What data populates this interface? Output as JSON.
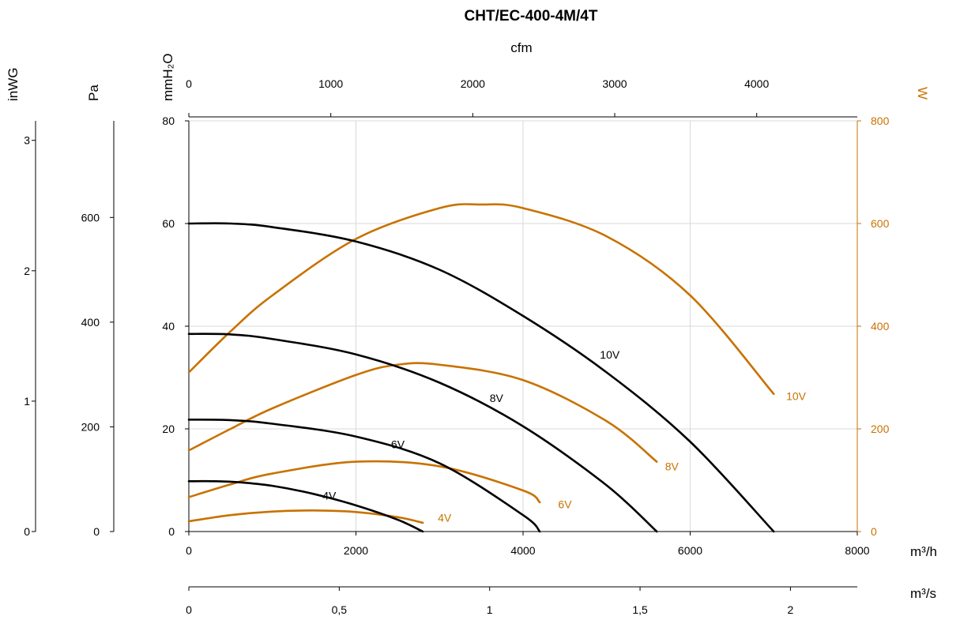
{
  "chart_data": {
    "type": "line",
    "title": "CHT/EC-400-4M/4T",
    "axes": {
      "x_main": {
        "label": "m³/h",
        "range": [
          0,
          8000
        ],
        "ticks": [
          0,
          2000,
          4000,
          6000,
          8000
        ],
        "tick_labels": [
          "0",
          "2000",
          "4000",
          "6000",
          "8000"
        ]
      },
      "x_top": {
        "label": "cfm",
        "ticks": [
          0,
          1000,
          2000,
          3000,
          4000
        ],
        "tick_labels": [
          "0",
          "1000",
          "2000",
          "3000",
          "4000"
        ]
      },
      "x_bottom": {
        "label": "m³/s",
        "ticks": [
          0,
          0.5,
          1,
          1.5,
          2
        ],
        "tick_labels": [
          "0",
          "0,5",
          "1",
          "1,5",
          "2"
        ]
      },
      "y_main": {
        "label": "mmH₂O",
        "range": [
          0,
          80
        ],
        "ticks": [
          0,
          20,
          40,
          60,
          80
        ],
        "tick_labels": [
          "0",
          "20",
          "40",
          "60",
          "80"
        ]
      },
      "y_pa": {
        "label": "Pa",
        "ticks": [
          0,
          200,
          400,
          600
        ],
        "tick_labels": [
          "0",
          "200",
          "400",
          "600"
        ]
      },
      "y_inwg": {
        "label": "inWG",
        "ticks": [
          0,
          1,
          2,
          3
        ],
        "tick_labels": [
          "0",
          "1",
          "2",
          "3"
        ]
      },
      "y_right": {
        "label": "W",
        "range": [
          0,
          800
        ],
        "ticks": [
          0,
          200,
          400,
          600,
          800
        ],
        "tick_labels": [
          "0",
          "200",
          "400",
          "600",
          "800"
        ]
      }
    },
    "grid": true,
    "pressure_series": [
      {
        "name": "10V",
        "label_at": [
          4920,
          34.5
        ],
        "x": [
          0,
          500,
          1000,
          2000,
          3000,
          4000,
          5000,
          6000,
          7000
        ],
        "y": [
          60,
          60,
          59.3,
          56.5,
          51,
          42,
          31,
          17.5,
          0
        ]
      },
      {
        "name": "8V",
        "label_at": [
          3600,
          26
        ],
        "x": [
          0,
          500,
          1000,
          2000,
          3000,
          4000,
          5000,
          5600
        ],
        "y": [
          38.5,
          38.4,
          37.5,
          34.5,
          29,
          20.5,
          9,
          0
        ]
      },
      {
        "name": "6V",
        "label_at": [
          2420,
          17
        ],
        "x": [
          0,
          500,
          1000,
          2000,
          3000,
          4000,
          4200
        ],
        "y": [
          21.8,
          21.7,
          21,
          18.5,
          13.3,
          3.2,
          0
        ]
      },
      {
        "name": "4V",
        "label_at": [
          1600,
          7
        ],
        "x": [
          0,
          300,
          600,
          1000,
          1500,
          2000,
          2500,
          2800
        ],
        "y": [
          9.8,
          9.8,
          9.6,
          8.9,
          7.3,
          5.1,
          2.3,
          0
        ]
      }
    ],
    "power_series": [
      {
        "name": "10V",
        "label_at": [
          7150,
          264
        ],
        "x": [
          0,
          500,
          1000,
          2000,
          3000,
          3500,
          4000,
          5000,
          6000,
          7000
        ],
        "y": [
          310,
          390,
          460,
          570,
          630,
          637,
          630,
          575,
          460,
          268
        ]
      },
      {
        "name": "8V",
        "label_at": [
          5700,
          127
        ],
        "x": [
          0,
          500,
          1000,
          2000,
          2500,
          3000,
          4000,
          5000,
          5600
        ],
        "y": [
          158,
          200,
          240,
          305,
          325,
          325,
          295,
          215,
          136
        ]
      },
      {
        "name": "6V",
        "label_at": [
          4420,
          53
        ],
        "x": [
          0,
          500,
          1000,
          2000,
          3000,
          4000,
          4200
        ],
        "y": [
          67,
          92,
          113,
          136,
          127,
          80,
          57
        ]
      },
      {
        "name": "4V",
        "label_at": [
          2980,
          27
        ],
        "x": [
          0,
          500,
          1000,
          1500,
          2000,
          2500,
          2800
        ],
        "y": [
          20,
          32,
          39,
          41,
          38,
          28,
          17
        ]
      }
    ]
  }
}
